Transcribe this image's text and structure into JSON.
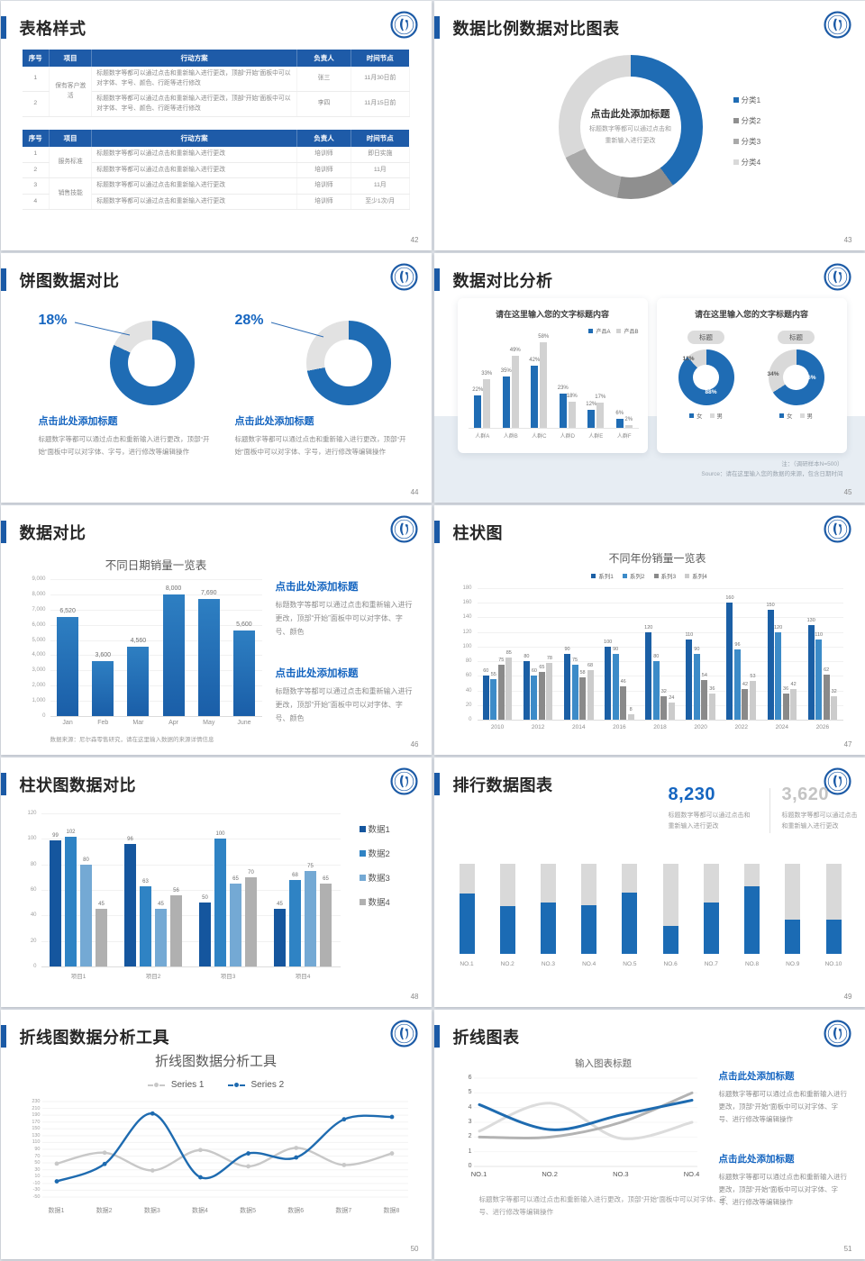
{
  "colors": {
    "accent": "#1b5aa6",
    "table_header": "#1e5ba8",
    "chart_blue": "#1f6cb4",
    "link_blue": "#1565c0",
    "body_gray": "#8c8c8c"
  },
  "slides": {
    "s42": {
      "title": "表格样式",
      "page": "42",
      "table1": {
        "headers": [
          "序号",
          "项目",
          "行动方案",
          "负责人",
          "时间节点"
        ],
        "rows": [
          {
            "no": "1",
            "project": "保有客户激活",
            "span": 2,
            "plan": "标题数字等都可以通过点击和重新输入进行更改，顶部“开始”面板中可以对字体、字号、颜色、行距等进行修改",
            "owner": "张三",
            "time": "11月30日前"
          },
          {
            "no": "2",
            "plan": "标题数字等都可以通过点击和重新输入进行更改，顶部“开始”面板中可以对字体、字号、颜色、行距等进行修改",
            "owner": "李四",
            "time": "11月15日前"
          }
        ]
      },
      "table2": {
        "headers": [
          "序号",
          "项目",
          "行动方案",
          "负责人",
          "时间节点"
        ],
        "rows": [
          {
            "no": "1",
            "project": "服务标准",
            "span": 2,
            "plan": "标题数字等都可以通过点击和重新输入进行更改",
            "owner": "培训师",
            "time": "即日实施"
          },
          {
            "no": "2",
            "plan": "标题数字等都可以通过点击和重新输入进行更改",
            "owner": "培训师",
            "time": "11月"
          },
          {
            "no": "3",
            "project": "销售技能",
            "span": 2,
            "plan": "标题数字等都可以通过点击和重新输入进行更改",
            "owner": "培训师",
            "time": "11月"
          },
          {
            "no": "4",
            "plan": "标题数字等都可以通过点击和重新输入进行更改",
            "owner": "培训师",
            "time": "至少1次/月"
          }
        ]
      }
    },
    "s43": {
      "title": "数据比例数据对比图表",
      "page": "43",
      "center_title": "点击此处添加标题",
      "center_body": "标题数字等都可以通过点击和重新输入进行更改"
    },
    "s44": {
      "title": "饼图数据对比",
      "page": "44",
      "items": [
        {
          "block_title": "点击此处添加标题",
          "block_body": "标题数字等都可以通过点击和重新输入进行更改，顶部“开始”面板中可以对字体、字号，进行修改等编辑操作"
        },
        {
          "block_title": "点击此处添加标题",
          "block_body": "标题数字等都可以通过点击和重新输入进行更改，顶部“开始”面板中可以对字体、字号，进行修改等编辑操作"
        }
      ]
    },
    "s45": {
      "title": "数据对比分析",
      "page": "45",
      "right_title": "请在这里输入您的文字标题内容",
      "note1": "注：（调研样本N=500）",
      "note2": "Source：请在这里输入您的数据的来源，包含日期时间"
    },
    "s46": {
      "title": "数据对比",
      "page": "46",
      "blocks": [
        {
          "t": "点击此处添加标题",
          "b": "标题数字等都可以通过点击和重新输入进行更改，顶部“开始”面板中可以对字体、字号、颜色"
        },
        {
          "t": "点击此处添加标题",
          "b": "标题数字等都可以通过点击和重新输入进行更改，顶部“开始”面板中可以对字体、字号、颜色"
        }
      ]
    },
    "s47": {
      "title": "柱状图",
      "page": "47"
    },
    "s48": {
      "title": "柱状图数据对比",
      "page": "48"
    },
    "s49": {
      "title": "排行数据图表",
      "page": "49",
      "stats": [
        {
          "num": "8,230",
          "cap": "标题数字等都可以通过点击和重新输入进行更改"
        },
        {
          "num": "3,620",
          "cap": "标题数字等都可以通过点击和重新输入进行更改"
        }
      ]
    },
    "s50": {
      "title": "折线图数据分析工具",
      "page": "50"
    },
    "s51": {
      "title": "折线图表",
      "page": "51",
      "caption": "标题数字等都可以通过点击和重新输入进行更改，顶部“开始”面板中可以对字体、字号、进行修改等编辑操作",
      "blocks": [
        {
          "t": "点击此处添加标题",
          "b": "标题数字等都可以通过点击和重新输入进行更改，顶部“开始”面板中可以对字体、字号、进行修改等编辑操作"
        },
        {
          "t": "点击此处添加标题",
          "b": "标题数字等都可以通过点击和重新输入进行更改，顶部“开始”面板中可以对字体、字号、进行修改等编辑操作"
        }
      ]
    }
  },
  "chart_data": [
    {
      "slide": 43,
      "type": "pie",
      "categories": [
        "分类1",
        "分类2",
        "分类3",
        "分类4"
      ],
      "values": [
        40,
        13,
        15,
        32
      ],
      "colors": [
        "#1f6cb4",
        "#8f8f8f",
        "#a9a9a9",
        "#d9d9d9"
      ],
      "legend_position": "right"
    },
    {
      "slide": 44,
      "type": "pie",
      "label": "18%",
      "values": [
        82,
        18
      ],
      "colors": [
        "#1f6cb4",
        "#e2e2e2"
      ]
    },
    {
      "slide": 44,
      "type": "pie",
      "label": "28%",
      "values": [
        72,
        28
      ],
      "colors": [
        "#1f6cb4",
        "#e2e2e2"
      ]
    },
    {
      "slide": 45,
      "type": "bar",
      "title": "请在这里输入您的文字标题内容",
      "categories": [
        "人群A",
        "人群B",
        "人群C",
        "人群D",
        "人群E",
        "人群F"
      ],
      "series": [
        {
          "name": "产品A",
          "color": "#1f6cb4",
          "values": [
            22,
            35,
            42,
            23,
            12,
            6
          ]
        },
        {
          "name": "产品B",
          "color": "#d2d2d2",
          "values": [
            33,
            49,
            58,
            18,
            17,
            2
          ]
        }
      ],
      "unit": "%",
      "ylim": [
        0,
        60
      ]
    },
    {
      "slide": 45,
      "type": "pie",
      "pill": "标题",
      "values": [
        88,
        12
      ],
      "labels": {
        "blue": "88%",
        "gray": "12%"
      },
      "legend": [
        "女",
        "男"
      ],
      "colors": [
        "#1f6cb4",
        "#d9d9d9"
      ]
    },
    {
      "slide": 45,
      "type": "pie",
      "pill": "标题",
      "values": [
        66,
        34
      ],
      "labels": {
        "blue": "66%",
        "gray": "34%"
      },
      "legend": [
        "女",
        "男"
      ],
      "colors": [
        "#1f6cb4",
        "#d9d9d9"
      ]
    },
    {
      "slide": 46,
      "type": "bar",
      "title": "不同日期销量一览表",
      "categories": [
        "Jan",
        "Feb",
        "Mar",
        "Apr",
        "May",
        "June"
      ],
      "values": [
        6520,
        3600,
        4560,
        8000,
        7690,
        5600
      ],
      "labels": [
        "6,520",
        "3,600",
        "4,560",
        "8,000",
        "7,690",
        "5,600"
      ],
      "yticks": [
        "9,000",
        "8,000",
        "7,000",
        "6,000",
        "5,000",
        "4,000",
        "3,000",
        "2,000",
        "1,000",
        "0"
      ],
      "ylim": [
        0,
        9000
      ],
      "color": "#2272b8",
      "source": "数据来源：尼尔森零售研究，请在这里输入数据的来源详情信息"
    },
    {
      "slide": 47,
      "type": "bar",
      "title": "不同年份销量一览表",
      "categories": [
        "2010",
        "2012",
        "2014",
        "2016",
        "2018",
        "2020",
        "2022",
        "2024",
        "2026"
      ],
      "series": [
        {
          "name": "系列1",
          "color": "#1b5fa5",
          "values": [
            60,
            80,
            90,
            100,
            120,
            110,
            160,
            150,
            130
          ]
        },
        {
          "name": "系列2",
          "color": "#3c8bc8",
          "values": [
            55,
            60,
            75,
            90,
            80,
            90,
            96,
            120,
            110
          ]
        },
        {
          "name": "系列3",
          "color": "#8a8a8a",
          "values": [
            75,
            65,
            58,
            46,
            32,
            54,
            42,
            36,
            62
          ]
        },
        {
          "name": "系列4",
          "color": "#cccccc",
          "values": [
            85,
            78,
            68,
            8,
            24,
            36,
            53,
            42,
            32
          ]
        }
      ],
      "ylim": [
        0,
        180
      ],
      "ytick_step": 20
    },
    {
      "slide": 48,
      "type": "bar",
      "categories": [
        "项目1",
        "项目2",
        "项目3",
        "项目4"
      ],
      "series": [
        {
          "name": "数据1",
          "color": "#15569e",
          "values": [
            99,
            96,
            50,
            45
          ]
        },
        {
          "name": "数据2",
          "color": "#2f83c4",
          "values": [
            102,
            63,
            100,
            68
          ]
        },
        {
          "name": "数据3",
          "color": "#74a9d4",
          "values": [
            80,
            45,
            65,
            75
          ]
        },
        {
          "name": "数据4",
          "color": "#b0b0b0",
          "values": [
            45,
            56,
            70,
            65
          ]
        }
      ],
      "ylim": [
        0,
        120
      ],
      "ytick_step": 20,
      "legend_position": "right"
    },
    {
      "slide": 49,
      "type": "bar",
      "subtype": "stacked-percent",
      "categories": [
        "NO.1",
        "NO.2",
        "NO.3",
        "NO.4",
        "NO.5",
        "NO.6",
        "NO.7",
        "NO.8",
        "NO.9",
        "NO.10"
      ],
      "blue_percent": [
        67,
        53,
        57,
        54,
        68,
        31,
        57,
        75,
        38,
        38
      ],
      "colors": [
        "#1b6bb4",
        "#d9d9d9"
      ]
    },
    {
      "slide": 50,
      "type": "line",
      "title": "折线图数据分析工具",
      "categories": [
        "数据1",
        "数据2",
        "数据3",
        "数据4",
        "数据5",
        "数据6",
        "数据7",
        "数据8"
      ],
      "series": [
        {
          "name": "Series 1",
          "color": "#c8c8c8",
          "values": [
            48,
            80,
            28,
            88,
            40,
            94,
            44,
            78
          ]
        },
        {
          "name": "Series 2",
          "color": "#1e6bb0",
          "values": [
            -4,
            47,
            195,
            8,
            78,
            66,
            178,
            185
          ]
        }
      ],
      "ylim": [
        -50,
        230
      ],
      "ytick_step": 20
    },
    {
      "slide": 51,
      "type": "line",
      "title": "输入图表标题",
      "categories": [
        "NO.1",
        "NO.2",
        "NO.3",
        "NO.4"
      ],
      "series": [
        {
          "color": "#1e6bb0",
          "values": [
            4.2,
            2.5,
            3.5,
            4.5
          ]
        },
        {
          "color": "#b3b3b3",
          "values": [
            2,
            2,
            3,
            5
          ]
        },
        {
          "color": "#dcdcdc",
          "values": [
            2.4,
            4.3,
            1.9,
            3
          ]
        }
      ],
      "ylim": [
        0,
        6
      ],
      "ytick_step": 1
    }
  ]
}
